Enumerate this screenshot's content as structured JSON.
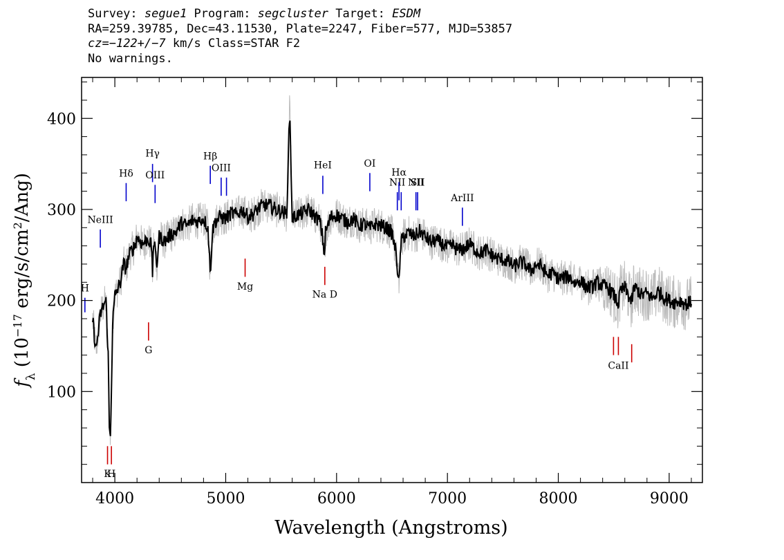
{
  "header": {
    "line1": {
      "survey_label": "Survey: ",
      "survey": "segue1",
      "program_label": " Program: ",
      "program": "segcluster",
      "target_label": " Target: ",
      "target": "ESDM"
    },
    "line2": "RA=259.39785, Dec=43.11530, Plate=2247, Fiber=577, MJD=53857",
    "line3": {
      "cz_label": "cz=",
      "cz": "−122+/−7",
      "cz_units": " km/s Class=STAR F2"
    },
    "line4": "No warnings."
  },
  "chart_data": {
    "type": "line",
    "title": "",
    "xlabel": "Wavelength (Angstroms)",
    "ylabel": "f_λ (10^-17 erg/s/cm^2/Ang)",
    "xlim": [
      3700,
      9300
    ],
    "ylim": [
      0,
      445
    ],
    "xticks": [
      4000,
      5000,
      6000,
      7000,
      8000,
      9000
    ],
    "yticks": [
      100,
      200,
      300,
      400
    ],
    "grid": false,
    "series": [
      {
        "role": "flux-smoothed",
        "color": "#000000",
        "x": [
          3800,
          3830,
          3850,
          3870,
          3900,
          3920,
          3940,
          3950,
          3960,
          3970,
          3980,
          4000,
          4050,
          4080,
          4100,
          4130,
          4150,
          4180,
          4200,
          4250,
          4300,
          4330,
          4340,
          4350,
          4380,
          4400,
          4450,
          4500,
          4550,
          4600,
          4650,
          4700,
          4750,
          4800,
          4840,
          4861,
          4880,
          4900,
          4950,
          5000,
          5050,
          5100,
          5150,
          5200,
          5250,
          5300,
          5350,
          5400,
          5450,
          5500,
          5550,
          5577,
          5600,
          5650,
          5700,
          5750,
          5800,
          5850,
          5870,
          5890,
          5900,
          5950,
          6000,
          6050,
          6100,
          6150,
          6200,
          6250,
          6300,
          6350,
          6400,
          6450,
          6500,
          6540,
          6563,
          6580,
          6600,
          6650,
          6700,
          6750,
          6800,
          6850,
          6900,
          6950,
          7000,
          7050,
          7100,
          7150,
          7200,
          7250,
          7300,
          7350,
          7400,
          7450,
          7500,
          7550,
          7600,
          7650,
          7700,
          7750,
          7800,
          7850,
          7900,
          7950,
          8000,
          8050,
          8100,
          8150,
          8200,
          8250,
          8300,
          8350,
          8400,
          8450,
          8498,
          8542,
          8560,
          8600,
          8662,
          8680,
          8700,
          8750,
          8800,
          8850,
          8900,
          8950,
          9000,
          9050,
          9100,
          9150,
          9200
        ],
        "y": [
          180,
          145,
          165,
          185,
          195,
          200,
          140,
          60,
          50,
          110,
          175,
          205,
          220,
          240,
          235,
          250,
          255,
          260,
          270,
          262,
          268,
          260,
          230,
          265,
          240,
          270,
          265,
          272,
          275,
          285,
          282,
          288,
          287,
          290,
          280,
          230,
          275,
          286,
          292,
          290,
          296,
          294,
          300,
          292,
          295,
          302,
          305,
          304,
          300,
          298,
          295,
          410,
          290,
          294,
          296,
          300,
          293,
          287,
          272,
          250,
          275,
          292,
          294,
          290,
          286,
          290,
          282,
          284,
          279,
          284,
          282,
          280,
          274,
          250,
          215,
          262,
          270,
          274,
          270,
          276,
          270,
          264,
          266,
          262,
          258,
          260,
          255,
          257,
          262,
          256,
          252,
          255,
          250,
          246,
          245,
          243,
          237,
          242,
          240,
          232,
          240,
          237,
          228,
          230,
          224,
          225,
          226,
          219,
          222,
          215,
          214,
          220,
          216,
          214,
          206,
          196,
          210,
          214,
          198,
          212,
          214,
          206,
          208,
          202,
          210,
          204,
          200,
          198,
          200,
          196,
          198
        ]
      },
      {
        "role": "flux-noise-band",
        "color": "#bbbbbb",
        "spread": 20
      }
    ],
    "lines": [
      {
        "label": "H",
        "wave": 3730,
        "color": "#0000cc",
        "label_y": 210,
        "y_top": 203,
        "y_bottom": 187
      },
      {
        "label": "NeIII",
        "wave": 3869,
        "color": "#0000cc",
        "label_y": 285,
        "y_top": 278,
        "y_bottom": 258
      },
      {
        "label": "Hδ",
        "wave": 4102,
        "color": "#0000cc",
        "label_y": 336,
        "y_top": 329,
        "y_bottom": 309
      },
      {
        "label": "Hγ",
        "wave": 4340,
        "color": "#0000cc",
        "label_y": 358,
        "y_top": 350,
        "y_bottom": 330
      },
      {
        "label": "OIII",
        "wave": 4363,
        "color": "#0000cc",
        "label_y": 334,
        "y_top": 327,
        "y_bottom": 307
      },
      {
        "label": "Hβ",
        "wave": 4861,
        "color": "#0000cc",
        "label_y": 355,
        "y_top": 348,
        "y_bottom": 328
      },
      {
        "label": "OIII",
        "wave": 4959,
        "color": "#0000cc",
        "label_y": 342,
        "y_top": 335,
        "y_bottom": 315
      },
      {
        "label": "",
        "wave": 5007,
        "color": "#0000cc",
        "label_y": 0,
        "y_top": 335,
        "y_bottom": 315
      },
      {
        "label": "HeI",
        "wave": 5876,
        "color": "#0000cc",
        "label_y": 345,
        "y_top": 337,
        "y_bottom": 317
      },
      {
        "label": "OI",
        "wave": 6300,
        "color": "#0000cc",
        "label_y": 347,
        "y_top": 340,
        "y_bottom": 320
      },
      {
        "label": "NII",
        "wave": 6548,
        "color": "#0000cc",
        "label_y": 326,
        "y_top": 319,
        "y_bottom": 299
      },
      {
        "label": "Hα",
        "wave": 6563,
        "color": "#0000cc",
        "label_y": 337,
        "y_top": 330,
        "y_bottom": 310
      },
      {
        "label": "",
        "wave": 6583,
        "color": "#0000cc",
        "label_y": 0,
        "y_top": 319,
        "y_bottom": 299
      },
      {
        "label": "NII",
        "wave": 6716,
        "color": "#0000cc",
        "label_y": 326,
        "y_top": 319,
        "y_bottom": 299
      },
      {
        "label": "SII",
        "wave": 6731,
        "color": "#0000cc",
        "label_y": 326,
        "y_top": 319,
        "y_bottom": 299
      },
      {
        "label": "ArIII",
        "wave": 7135,
        "color": "#0000cc",
        "label_y": 309,
        "y_top": 302,
        "y_bottom": 282
      },
      {
        "label": "K",
        "wave": 3934,
        "color": "#cc0000",
        "label_y": 6,
        "y_top": 40,
        "y_bottom": 20
      },
      {
        "label": "H",
        "wave": 3969,
        "color": "#cc0000",
        "label_y": 6,
        "y_top": 40,
        "y_bottom": 20
      },
      {
        "label": "G",
        "wave": 4304,
        "color": "#cc0000",
        "label_y": 142,
        "y_top": 176,
        "y_bottom": 156
      },
      {
        "label": "Mg",
        "wave": 5175,
        "color": "#cc0000",
        "label_y": 212,
        "y_top": 246,
        "y_bottom": 226
      },
      {
        "label": "Na D",
        "wave": 5894,
        "color": "#cc0000",
        "label_y": 203,
        "y_top": 237,
        "y_bottom": 217
      },
      {
        "label": "",
        "wave": 8498,
        "color": "#cc0000",
        "label_y": 0,
        "y_top": 160,
        "y_bottom": 140
      },
      {
        "label": "CaII",
        "wave": 8542,
        "color": "#cc0000",
        "label_y": 125,
        "y_top": 160,
        "y_bottom": 140
      },
      {
        "label": "",
        "wave": 8662,
        "color": "#cc0000",
        "label_y": 0,
        "y_top": 152,
        "y_bottom": 132
      }
    ]
  }
}
